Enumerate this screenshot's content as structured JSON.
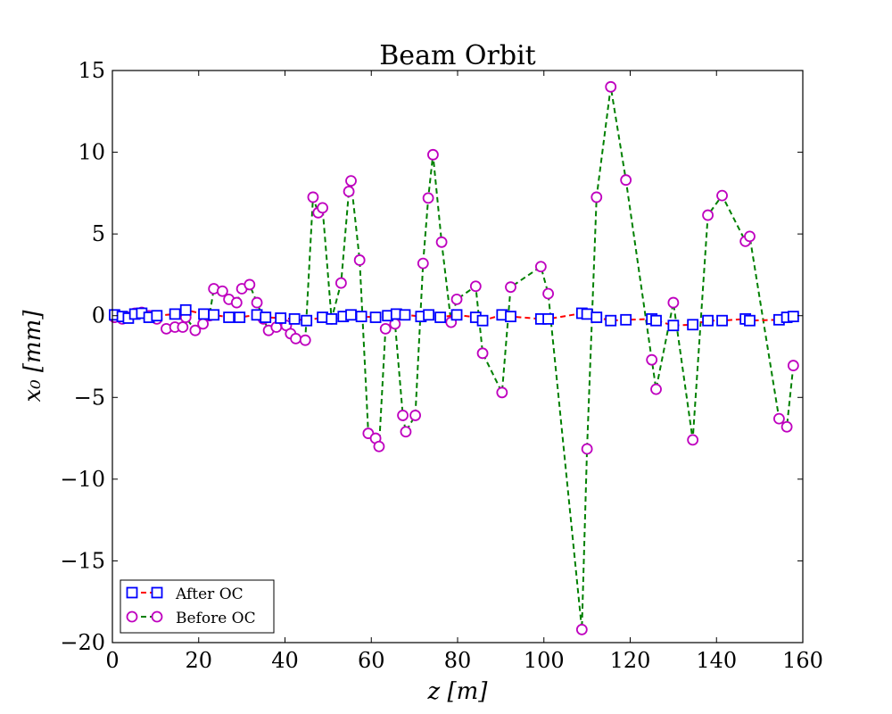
{
  "chart_data": {
    "type": "line",
    "title": "Beam Orbit",
    "xlabel": "z [m]",
    "ylabel": "x₀ [mm]",
    "xlim": [
      0,
      160
    ],
    "ylim": [
      -20,
      15
    ],
    "xticks": [
      0,
      20,
      40,
      60,
      80,
      100,
      120,
      140,
      160
    ],
    "yticks": [
      15,
      10,
      5,
      0,
      -5,
      -10,
      -15,
      -20
    ],
    "xtick_labels": [
      "0",
      "20",
      "40",
      "60",
      "80",
      "100",
      "120",
      "140",
      "160"
    ],
    "ytick_labels": [
      "15",
      "10",
      "5",
      "0",
      "−5",
      "−10",
      "−15",
      "−20"
    ],
    "grid": false,
    "legend_position": "lower-left",
    "series": [
      {
        "name": "After OC",
        "line_color": "#ff0000",
        "marker_color": "#0000ff",
        "marker": "square",
        "x": [
          0.5,
          2.3,
          3.7,
          5.2,
          6.8,
          8.5,
          10.3,
          14.5,
          17,
          21.2,
          23.5,
          27,
          29.5,
          33.5,
          35.5,
          39,
          42.2,
          45,
          48.7,
          50.8,
          53.5,
          55.3,
          57.7,
          61,
          63.8,
          65.8,
          67.8,
          71.5,
          73.3,
          76,
          79.8,
          84.2,
          85.8,
          90.3,
          92.3,
          99.3,
          101,
          108.8,
          110,
          112.2,
          115.5,
          119,
          125,
          126,
          130,
          134.5,
          138,
          141.3,
          146.7,
          147.7,
          154.5,
          156.3,
          157.8
        ],
        "y": [
          0.05,
          -0.05,
          -0.15,
          0.1,
          0.15,
          -0.1,
          0.0,
          0.1,
          0.35,
          0.1,
          0.05,
          -0.1,
          -0.1,
          0.05,
          -0.1,
          -0.15,
          -0.2,
          -0.3,
          -0.1,
          -0.2,
          -0.05,
          0.05,
          -0.05,
          -0.1,
          0.0,
          0.1,
          0.05,
          -0.05,
          0.05,
          -0.1,
          0.05,
          -0.1,
          -0.3,
          0.05,
          -0.05,
          -0.2,
          -0.2,
          0.15,
          0.1,
          -0.1,
          -0.3,
          -0.25,
          -0.2,
          -0.3,
          -0.6,
          -0.55,
          -0.3,
          -0.3,
          -0.2,
          -0.3,
          -0.25,
          -0.1,
          -0.05
        ]
      },
      {
        "name": "Before OC",
        "line_color": "#008000",
        "marker_color": "#bf00bf",
        "marker": "circle",
        "x": [
          0.5,
          2.3,
          3.7,
          5.2,
          6.8,
          8.5,
          10.3,
          12.5,
          14.5,
          16.3,
          17,
          19.2,
          21,
          22.5,
          23.5,
          25.5,
          27,
          28.8,
          30,
          31.8,
          33.5,
          35,
          36.2,
          38,
          40.3,
          41.3,
          42.5,
          44.7,
          46.5,
          47.7,
          48.7,
          50.8,
          53,
          54.8,
          55.3,
          57.3,
          59.3,
          61,
          61.8,
          63.3,
          65.5,
          67.3,
          68,
          70.2,
          72,
          73.2,
          74.3,
          76.3,
          78.5,
          79.8,
          84.2,
          85.8,
          90.3,
          92.3,
          99.3,
          101,
          108.8,
          110,
          112.2,
          115.5,
          119,
          125,
          126,
          130,
          134.5,
          138,
          141.3,
          146.7,
          147.7,
          154.5,
          156.3,
          157.8
        ],
        "y": [
          -0.1,
          -0.2,
          -0.1,
          0.15,
          0.2,
          0.0,
          -0.2,
          -0.8,
          -0.7,
          -0.7,
          -0.1,
          -0.9,
          -0.5,
          0.0,
          1.65,
          1.5,
          1.0,
          0.8,
          1.65,
          1.9,
          0.8,
          -0.2,
          -0.9,
          -0.7,
          -0.6,
          -1.1,
          -1.4,
          -1.5,
          7.25,
          6.3,
          6.6,
          -0.2,
          2.0,
          7.6,
          8.25,
          3.4,
          -7.2,
          -7.5,
          -8.0,
          -0.8,
          -0.5,
          -6.1,
          -7.1,
          -6.1,
          3.2,
          7.2,
          9.85,
          4.5,
          -0.4,
          1.0,
          1.8,
          -2.3,
          -4.7,
          1.75,
          3.0,
          1.35,
          -19.2,
          -8.15,
          7.25,
          14.0,
          8.3,
          -2.7,
          -4.5,
          0.8,
          -7.6,
          6.15,
          7.35,
          4.55,
          4.85,
          -6.3,
          -6.8,
          -3.05
        ]
      }
    ]
  }
}
